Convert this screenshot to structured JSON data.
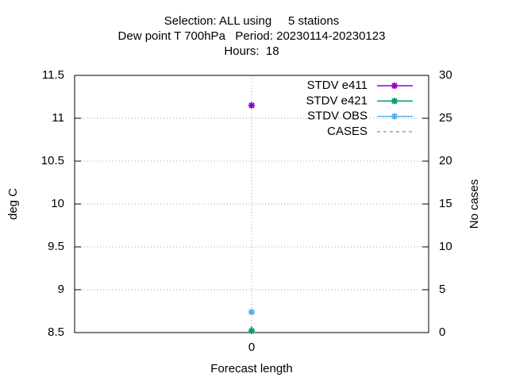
{
  "chart_data": {
    "type": "line",
    "title": [
      "Selection: ALL using     5 stations",
      "Dew point T 700hPa   Period: 20230114-20230123",
      "Hours:  18"
    ],
    "xlabel": "Forecast length",
    "ylabel": "deg C",
    "y2label": "No cases",
    "x": [
      0
    ],
    "xlim": [
      -1,
      1
    ],
    "xticks": [
      0
    ],
    "ylim": [
      8.5,
      11.5
    ],
    "yticks": [
      8.5,
      9,
      9.5,
      10,
      10.5,
      11,
      11.5
    ],
    "y2lim": [
      0,
      30
    ],
    "y2ticks": [
      0,
      5,
      10,
      15,
      20,
      25,
      30
    ],
    "grid": true,
    "legend": "top-right",
    "series": [
      {
        "name": "STDV e411",
        "color": "#9400d3",
        "values": [
          11.15
        ]
      },
      {
        "name": "STDV e421",
        "color": "#009e73",
        "values": [
          8.52
        ]
      },
      {
        "name": "STDV OBS",
        "color": "#56b4e9",
        "values": [
          8.74
        ]
      },
      {
        "name": "CASES",
        "color": "#a0a0a0",
        "values": [
          null
        ],
        "axis": "y2",
        "dashed": true
      }
    ]
  }
}
